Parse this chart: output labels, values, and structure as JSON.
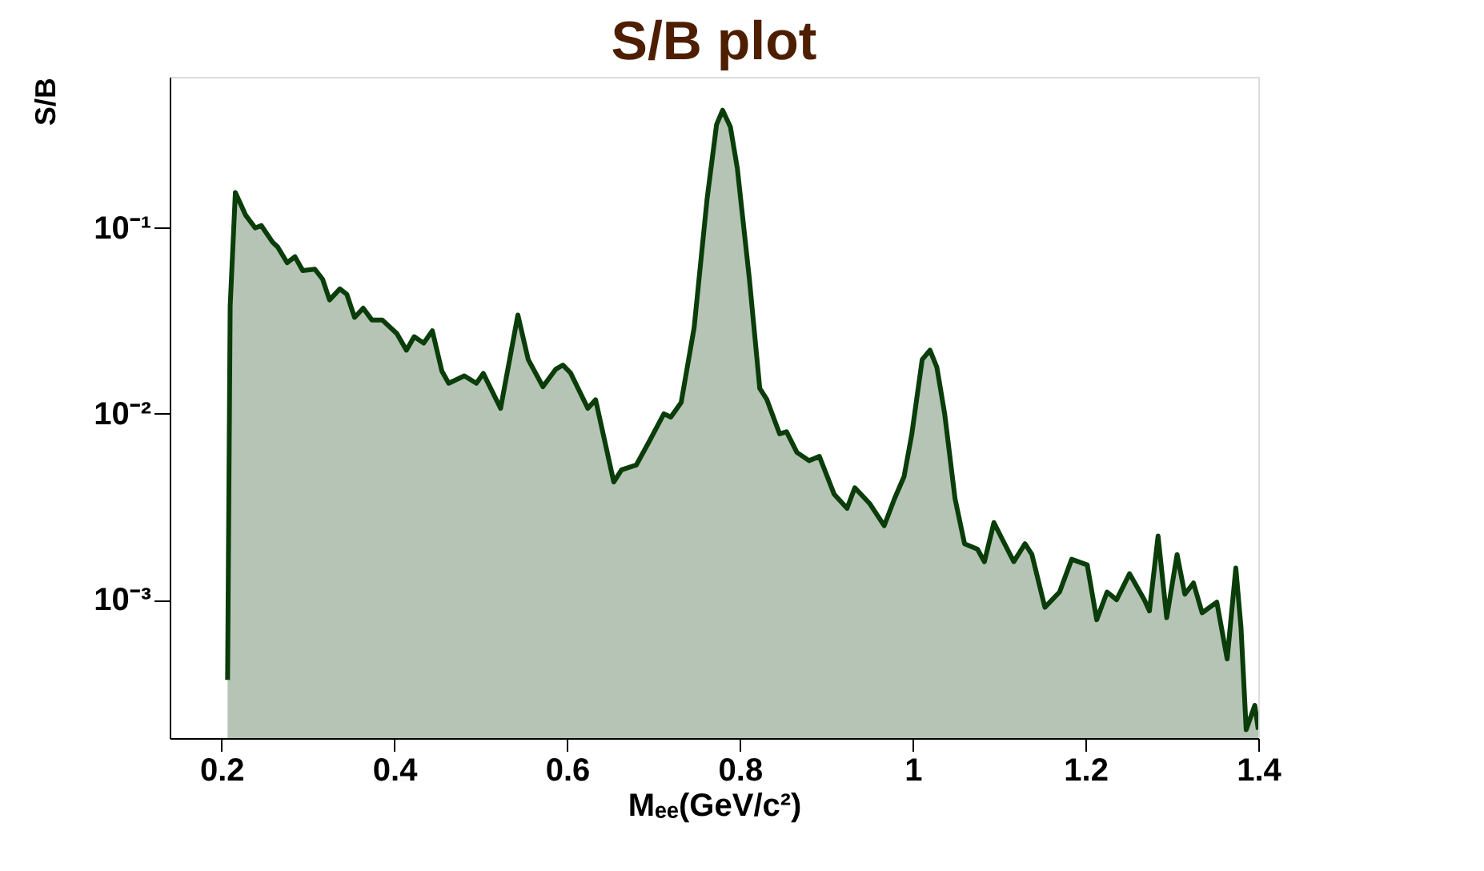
{
  "chart_data": {
    "type": "area",
    "title": "S/B plot",
    "xlabel": "Mₑₑ(GeV/c²)",
    "ylabel": "S/B",
    "log": "y",
    "grid": false,
    "xlim": [
      0.14,
      1.4
    ],
    "xticks": [
      0.2,
      0.4,
      0.6,
      0.8,
      1,
      1.2,
      1.4
    ],
    "ylim": [
      0.00018,
      0.65
    ],
    "yticks": [
      {
        "value": 0.001,
        "label": "10⁻³"
      },
      {
        "value": 0.01,
        "label": "10⁻²"
      },
      {
        "value": 0.1,
        "label": "10⁻¹"
      }
    ],
    "x": [
      0.207,
      0.21,
      0.216,
      0.228,
      0.239,
      0.246,
      0.259,
      0.265,
      0.276,
      0.285,
      0.294,
      0.308,
      0.317,
      0.325,
      0.337,
      0.345,
      0.354,
      0.364,
      0.374,
      0.386,
      0.403,
      0.414,
      0.423,
      0.434,
      0.444,
      0.455,
      0.463,
      0.481,
      0.495,
      0.503,
      0.523,
      0.543,
      0.555,
      0.572,
      0.587,
      0.595,
      0.604,
      0.624,
      0.633,
      0.654,
      0.663,
      0.68,
      0.695,
      0.712,
      0.72,
      0.732,
      0.747,
      0.762,
      0.773,
      0.78,
      0.789,
      0.797,
      0.811,
      0.823,
      0.831,
      0.846,
      0.854,
      0.866,
      0.88,
      0.892,
      0.909,
      0.924,
      0.933,
      0.95,
      0.967,
      0.979,
      0.99,
      0.999,
      1.011,
      1.02,
      1.028,
      1.037,
      1.049,
      1.06,
      1.075,
      1.083,
      1.094,
      1.104,
      1.117,
      1.13,
      1.138,
      1.153,
      1.17,
      1.184,
      1.202,
      1.213,
      1.225,
      1.236,
      1.251,
      1.268,
      1.274,
      1.284,
      1.294,
      1.306,
      1.315,
      1.325,
      1.335,
      1.352,
      1.364,
      1.374,
      1.38,
      1.386,
      1.396,
      1.4
    ],
    "series": [
      {
        "color": "#0a3d0a",
        "values": [
          0.00037,
          0.038,
          0.155,
          0.117,
          0.1,
          0.103,
          0.084,
          0.079,
          0.065,
          0.07,
          0.059,
          0.06,
          0.053,
          0.041,
          0.047,
          0.044,
          0.033,
          0.037,
          0.032,
          0.032,
          0.027,
          0.022,
          0.026,
          0.024,
          0.028,
          0.017,
          0.0146,
          0.016,
          0.0146,
          0.0165,
          0.0107,
          0.034,
          0.0196,
          0.014,
          0.0174,
          0.0183,
          0.0166,
          0.0107,
          0.0119,
          0.0043,
          0.005,
          0.0053,
          0.0071,
          0.01,
          0.0096,
          0.0115,
          0.029,
          0.143,
          0.36,
          0.43,
          0.35,
          0.21,
          0.053,
          0.0137,
          0.012,
          0.0078,
          0.008,
          0.0062,
          0.0056,
          0.0059,
          0.0037,
          0.0031,
          0.004,
          0.0033,
          0.0025,
          0.0035,
          0.0046,
          0.0078,
          0.0196,
          0.022,
          0.0178,
          0.01,
          0.0035,
          0.002,
          0.00187,
          0.0016,
          0.0026,
          0.0021,
          0.0016,
          0.002,
          0.00175,
          0.00091,
          0.0011,
          0.00165,
          0.00154,
          0.00078,
          0.0011,
          0.001,
          0.00138,
          0.001,
          0.00087,
          0.0022,
          0.0008,
          0.00175,
          0.00107,
          0.00123,
          0.00085,
          0.00097,
          0.00048,
          0.00148,
          0.00071,
          0.0002,
          0.00027,
          0.0002
        ]
      }
    ]
  }
}
